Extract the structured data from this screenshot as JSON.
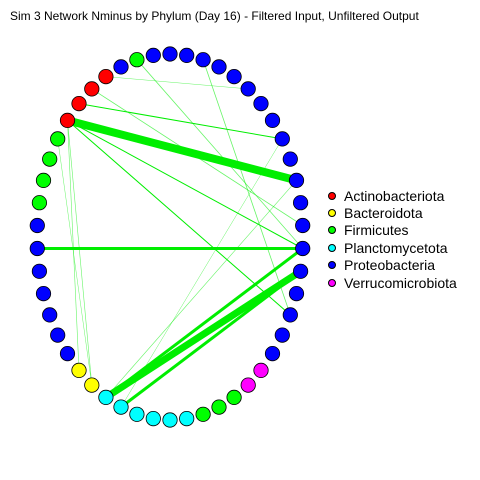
{
  "title": "Sim 3 Network Nminus by Phylum (Day 16) - Filtered Input, Unfiltered Output",
  "legend": [
    {
      "label": "Actinobacteriota",
      "color": "#ff0000"
    },
    {
      "label": "Bacteroidota",
      "color": "#ffff00"
    },
    {
      "label": "Firmicutes",
      "color": "#00ff00"
    },
    {
      "label": "Planctomycetota",
      "color": "#00ffff"
    },
    {
      "label": "Proteobacteria",
      "color": "#0000ff"
    },
    {
      "label": "Verrucomicrobiota",
      "color": "#ff00ff"
    }
  ],
  "colors": {
    "edge": "#00ee00",
    "node_border": "#000000"
  },
  "network": {
    "node_phyla": [
      "Proteobacteria",
      "Proteobacteria",
      "Proteobacteria",
      "Proteobacteria",
      "Proteobacteria",
      "Proteobacteria",
      "Proteobacteria",
      "Proteobacteria",
      "Proteobacteria",
      "Proteobacteria",
      "Proteobacteria",
      "Proteobacteria",
      "Proteobacteria",
      "Proteobacteria",
      "Proteobacteria",
      "Proteobacteria",
      "Proteobacteria",
      "Proteobacteria",
      "Proteobacteria",
      "Verrucomicrobiota",
      "Verrucomicrobiota",
      "Firmicutes",
      "Firmicutes",
      "Firmicutes",
      "Planctomycetota",
      "Planctomycetota",
      "Planctomycetota",
      "Planctomycetota",
      "Planctomycetota",
      "Planctomycetota",
      "Bacteroidota",
      "Bacteroidota",
      "Proteobacteria",
      "Proteobacteria",
      "Proteobacteria",
      "Proteobacteria",
      "Proteobacteria",
      "Proteobacteria",
      "Proteobacteria",
      "Firmicutes",
      "Firmicutes",
      "Firmicutes",
      "Firmicutes",
      "Actinobacteriota",
      "Actinobacteriota",
      "Actinobacteriota",
      "Actinobacteriota",
      "Proteobacteria",
      "Firmicutes",
      "Proteobacteria"
    ],
    "edges": [
      {
        "source": 44,
        "target": 8,
        "weight": 1
      },
      {
        "source": 43,
        "target": 10,
        "weight": 8
      },
      {
        "source": 43,
        "target": 13,
        "weight": 1
      },
      {
        "source": 43,
        "target": 16,
        "weight": 1
      },
      {
        "source": 43,
        "target": 30,
        "weight": 0.6
      },
      {
        "source": 43,
        "target": 31,
        "weight": 0.6
      },
      {
        "source": 45,
        "target": 12,
        "weight": 0.8
      },
      {
        "source": 46,
        "target": 5,
        "weight": 0.5
      },
      {
        "source": 48,
        "target": 13,
        "weight": 0.8
      },
      {
        "source": 42,
        "target": 30,
        "weight": 0.5
      },
      {
        "source": 37,
        "target": 13,
        "weight": 3
      },
      {
        "source": 13,
        "target": 29,
        "weight": 3
      },
      {
        "source": 14,
        "target": 29,
        "weight": 7
      },
      {
        "source": 14,
        "target": 28,
        "weight": 3
      },
      {
        "source": 2,
        "target": 16,
        "weight": 0.8
      },
      {
        "source": 29,
        "target": 10,
        "weight": 0.6
      },
      {
        "source": 28,
        "target": 8,
        "weight": 0.5
      }
    ]
  }
}
